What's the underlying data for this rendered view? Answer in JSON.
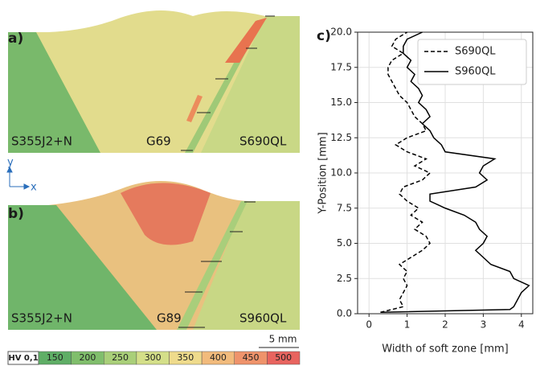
{
  "maps": [
    {
      "label": "a)",
      "left": "S355J2+N",
      "middle": "G69",
      "right": "S690QL"
    },
    {
      "label": "b)",
      "left": "S355J2+N",
      "middle": "G89",
      "right": "S960QL"
    }
  ],
  "axes_indicator": {
    "y": "y",
    "x": "x"
  },
  "scale_bar": "5 mm",
  "colorbar": {
    "title": "HV 0,1",
    "ticks": [
      150,
      200,
      250,
      300,
      350,
      400,
      450,
      500
    ],
    "colors": [
      "#5fae66",
      "#80be6c",
      "#a9cf79",
      "#d4df89",
      "#efdb8c",
      "#f2bb7c",
      "#ef936b",
      "#e8645f"
    ]
  },
  "chart_data": {
    "type": "line",
    "panel_label": "c)",
    "xlabel": "Width of soft zone [mm]",
    "ylabel": "Y-Position [mm]",
    "xlim": [
      -0.3,
      4.3
    ],
    "xticks": [
      0,
      1,
      2,
      3,
      4
    ],
    "ylim": [
      0,
      20
    ],
    "yticks": [
      {
        "value": 0,
        "label": "0.0"
      },
      2.5,
      {
        "value": 5,
        "label": "5.0"
      },
      7.5,
      {
        "value": 10,
        "label": "10.0"
      },
      12.5,
      {
        "value": 15,
        "label": "15.0"
      },
      17.5,
      {
        "value": 20,
        "label": "20.0"
      }
    ],
    "grid": true,
    "legend": "upper right",
    "series": [
      {
        "name": "S690QL",
        "color": "#000000",
        "dash": true,
        "y": [
          0.1,
          0.5,
          1.0,
          1.5,
          2.0,
          2.5,
          3.0,
          3.5,
          4.0,
          4.5,
          5.0,
          5.5,
          6.0,
          6.5,
          7.0,
          7.5,
          8.0,
          8.5,
          9.0,
          9.5,
          10.0,
          10.5,
          11.0,
          11.5,
          12.0,
          12.5,
          13.0,
          13.5,
          14.0,
          14.5,
          15.0,
          15.5,
          16.0,
          16.5,
          17.0,
          17.5,
          18.0,
          18.5,
          19.0,
          19.5,
          20.0
        ],
        "values": [
          0.3,
          0.9,
          0.8,
          0.9,
          1.0,
          0.9,
          1.0,
          0.8,
          1.1,
          1.4,
          1.6,
          1.5,
          1.2,
          1.4,
          1.1,
          1.3,
          1.0,
          0.8,
          0.9,
          1.4,
          1.6,
          1.2,
          1.5,
          1.0,
          0.7,
          1.0,
          1.5,
          1.4,
          1.2,
          1.1,
          1.0,
          0.8,
          0.7,
          0.6,
          0.5,
          0.5,
          0.6,
          0.9,
          0.6,
          0.7,
          1.0
        ]
      },
      {
        "name": "S960QL",
        "color": "#000000",
        "dash": false,
        "y": [
          0.1,
          0.3,
          0.5,
          1.0,
          1.5,
          2.0,
          2.5,
          3.0,
          3.5,
          4.0,
          4.5,
          5.0,
          5.5,
          6.0,
          6.5,
          7.0,
          7.5,
          8.0,
          8.5,
          9.0,
          9.5,
          10.0,
          10.5,
          11.0,
          11.5,
          12.0,
          12.5,
          13.0,
          13.5,
          14.0,
          14.5,
          15.0,
          15.5,
          16.0,
          16.5,
          17.0,
          17.5,
          18.0,
          18.5,
          19.0,
          19.5,
          20.0
        ],
        "values": [
          0.3,
          3.7,
          3.8,
          3.9,
          4.0,
          4.2,
          3.8,
          3.7,
          3.2,
          3.0,
          2.8,
          3.0,
          3.1,
          2.9,
          2.8,
          2.5,
          2.0,
          1.6,
          1.6,
          2.8,
          3.1,
          2.9,
          3.0,
          3.3,
          2.0,
          1.9,
          1.7,
          1.6,
          1.4,
          1.6,
          1.5,
          1.3,
          1.4,
          1.3,
          1.1,
          1.2,
          1.0,
          1.1,
          0.9,
          0.9,
          1.0,
          1.4
        ]
      }
    ]
  }
}
